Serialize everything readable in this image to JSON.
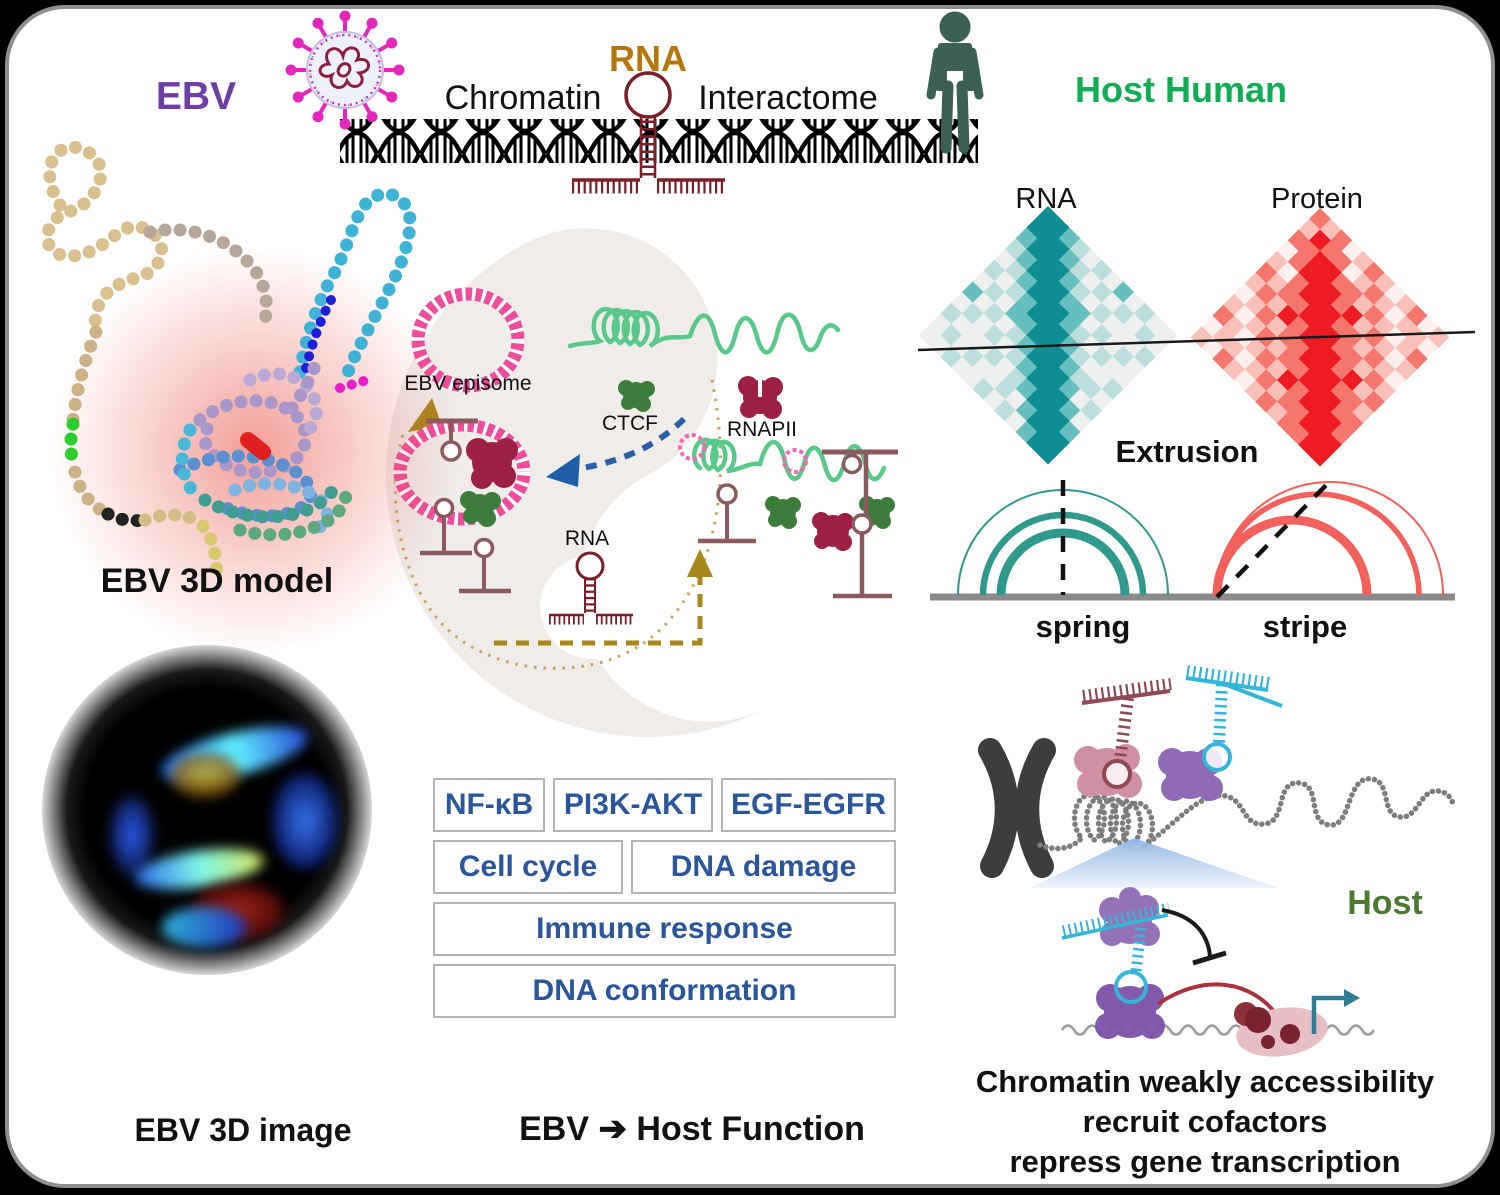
{
  "title": "EBV RNA Chromatin Interactome",
  "header": {
    "ebv": "EBV",
    "rna": "RNA",
    "chromatin": "Chromatin",
    "interactome": "Interactome",
    "host_human": "Host Human"
  },
  "left_panel": {
    "model_caption": "EBV 3D model",
    "image_caption": "EBV 3D image"
  },
  "center_panel": {
    "episome_label": "EBV episome",
    "ctcf_label": "CTCF",
    "rnapii_label": "RNAPII",
    "rna_label": "RNA",
    "caption": "EBV ➔ Host Function",
    "pathways": [
      "NF-κB",
      "PI3K-AKT",
      "EGF-EGFR",
      "Cell cycle",
      "DNA damage",
      "Immune response",
      "DNA conformation"
    ]
  },
  "right_panel": {
    "rna_heatmap_label": "RNA",
    "protein_heatmap_label": "Protein",
    "extrusion_label": "Extrusion",
    "spring_label": "spring",
    "stripe_label": "stripe",
    "host_label": "Host",
    "caption_lines": [
      "Chromatin weakly accessibility",
      "recruit cofactors",
      "repress gene transcription"
    ]
  },
  "heatmaps": {
    "rna": {
      "palette": [
        "#edf0ef",
        "#bcdedd",
        "#66bfbe",
        "#0e8e92"
      ],
      "grid": [
        [
          3,
          3,
          2,
          1,
          0,
          1,
          0,
          2,
          0,
          1,
          0,
          0
        ],
        [
          3,
          3,
          3,
          2,
          1,
          0,
          1,
          0,
          1,
          0,
          1,
          0
        ],
        [
          2,
          3,
          3,
          3,
          2,
          1,
          0,
          1,
          0,
          0,
          0,
          1
        ],
        [
          1,
          2,
          3,
          3,
          3,
          2,
          2,
          0,
          1,
          0,
          1,
          0
        ],
        [
          0,
          1,
          2,
          3,
          3,
          3,
          2,
          1,
          0,
          1,
          0,
          0
        ],
        [
          1,
          0,
          1,
          2,
          3,
          3,
          3,
          2,
          1,
          0,
          0,
          1
        ],
        [
          0,
          1,
          0,
          2,
          2,
          3,
          3,
          3,
          2,
          1,
          1,
          0
        ],
        [
          2,
          0,
          1,
          0,
          1,
          2,
          3,
          3,
          3,
          2,
          0,
          1
        ],
        [
          0,
          1,
          0,
          1,
          0,
          1,
          2,
          3,
          3,
          3,
          2,
          0
        ],
        [
          1,
          0,
          0,
          0,
          1,
          0,
          1,
          2,
          3,
          3,
          3,
          2
        ],
        [
          0,
          1,
          0,
          1,
          0,
          0,
          1,
          0,
          2,
          3,
          3,
          3
        ],
        [
          0,
          0,
          1,
          0,
          0,
          1,
          0,
          1,
          0,
          2,
          3,
          3
        ]
      ]
    },
    "protein": {
      "palette": [
        "#fdf0ee",
        "#f9c0b9",
        "#f4766c",
        "#ee1b23"
      ],
      "grid": [
        [
          2,
          1,
          2,
          0,
          1,
          2,
          1,
          0,
          1,
          2,
          0,
          1
        ],
        [
          1,
          3,
          2,
          2,
          0,
          1,
          2,
          1,
          0,
          1,
          1,
          0
        ],
        [
          2,
          2,
          3,
          3,
          2,
          2,
          1,
          2,
          1,
          0,
          1,
          2
        ],
        [
          0,
          2,
          3,
          3,
          3,
          2,
          3,
          1,
          2,
          1,
          0,
          1
        ],
        [
          1,
          0,
          2,
          3,
          3,
          3,
          2,
          2,
          1,
          2,
          1,
          0
        ],
        [
          2,
          1,
          2,
          2,
          3,
          3,
          3,
          2,
          2,
          1,
          2,
          1
        ],
        [
          1,
          2,
          1,
          3,
          2,
          3,
          3,
          3,
          2,
          3,
          1,
          2
        ],
        [
          0,
          1,
          2,
          1,
          2,
          2,
          3,
          3,
          3,
          2,
          2,
          1
        ],
        [
          1,
          0,
          1,
          2,
          1,
          2,
          2,
          3,
          3,
          3,
          2,
          2
        ],
        [
          2,
          1,
          0,
          1,
          2,
          1,
          3,
          2,
          3,
          3,
          3,
          2
        ],
        [
          0,
          1,
          1,
          0,
          1,
          2,
          1,
          2,
          2,
          3,
          3,
          3
        ],
        [
          1,
          0,
          2,
          1,
          0,
          1,
          2,
          1,
          2,
          2,
          3,
          3
        ]
      ]
    }
  },
  "colors": {
    "ebv_purple": "#6b3fa3",
    "rna_gold": "#b5770a",
    "host_green_bright": "#0fae54",
    "host_green_dark": "#4c7a33",
    "human_icon_green": "#3c6051",
    "virus_magenta": "#e427ba",
    "virus_genome": "#8c1f3f",
    "spring_teal": "#2f9a8b",
    "stripe_red": "#f4605c",
    "pathway_blue": "#2b569b",
    "box_border": "#b4b4b4",
    "episome_pink": "#ef4d9b",
    "ctcf_green": "#3d7d3c",
    "rnapii_maroon": "#9c2144",
    "hairpin_brown": "#8a5a5e",
    "rna_darkred": "#7b1f2b",
    "gold_arrow": "#a8871c",
    "blue_arrow": "#2a5fa8",
    "chromatin_green": "#58c98a",
    "yinyang_gray": "#efecea",
    "chrom_gray": "#7d7d7d",
    "cyan_rna": "#35b5d8",
    "purple_blob": "#8f6bb5",
    "pink_blob": "#cf8fa4",
    "dark_chromosome": "#3d3d3d"
  }
}
